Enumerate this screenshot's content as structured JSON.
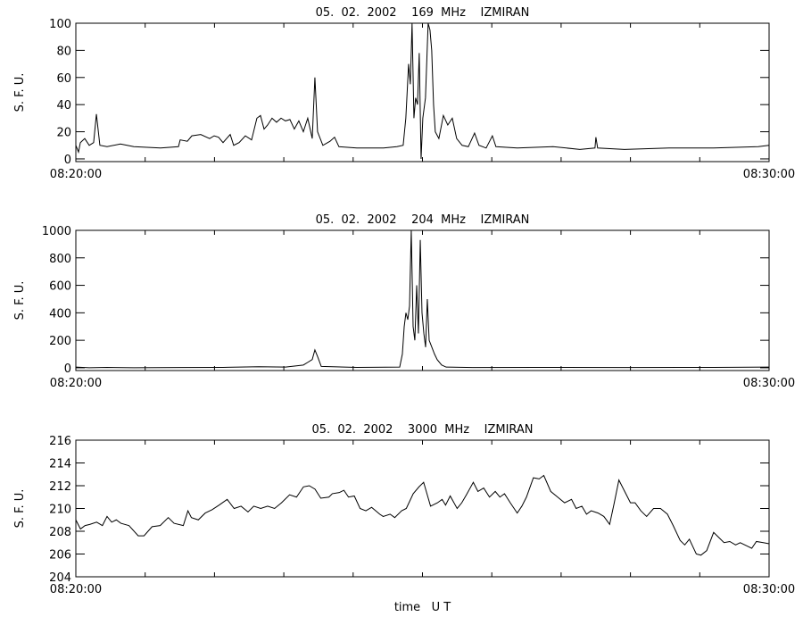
{
  "chart_data": [
    {
      "type": "line",
      "title": "05.  02.  2002    169  MHz    IZMIRAN",
      "y_label": "S. F. U.",
      "color": "#000000",
      "x": [
        0,
        2.3,
        3.9,
        7.7,
        11.6,
        15.4,
        17.8,
        20.8,
        27.0,
        38.6,
        50.2,
        73.3,
        88.8,
        90.3,
        96.5,
        100.4,
        108.1,
        115.8,
        119.7,
        123.5,
        127.4,
        133.6,
        136.6,
        141.3,
        146.7,
        152.1,
        156.7,
        159.8,
        162.9,
        166.0,
        169.8,
        173.7,
        177.6,
        181.4,
        185.3,
        189.1,
        193.0,
        196.9,
        200.7,
        204.6,
        206.9,
        209.2,
        213.8,
        220.0,
        223.9,
        227.7,
        243.2,
        266.3,
        277.9,
        283.3,
        285.6,
        288.0,
        289.5,
        291.0,
        292.6,
        294.1,
        295.7,
        297.2,
        298.8,
        300.3,
        302.6,
        304.9,
        306.5,
        308.0,
        309.6,
        311.1,
        314.2,
        318.1,
        321.9,
        325.8,
        329.6,
        334.3,
        339.7,
        345.1,
        348.9,
        355.1,
        360.5,
        363.6,
        382.1,
        413.0,
        436.2,
        449.3,
        450.1,
        451.6,
        474.8,
        513.4,
        552.0,
        590.6,
        600
      ],
      "values": [
        10,
        5,
        12,
        15,
        10,
        12,
        33,
        10,
        9,
        11,
        9,
        8,
        9,
        14,
        13,
        17,
        18,
        15,
        17,
        16,
        12,
        18,
        10,
        12,
        17,
        14,
        30,
        32,
        22,
        25,
        30,
        27,
        30,
        28,
        29,
        22,
        28,
        20,
        30,
        15,
        60,
        20,
        10,
        13,
        16,
        9,
        8,
        8,
        9,
        10,
        30,
        70,
        55,
        100,
        30,
        45,
        40,
        78,
        0,
        30,
        45,
        100,
        95,
        80,
        40,
        20,
        15,
        32,
        25,
        30,
        15,
        10,
        9,
        19,
        10,
        8,
        17,
        9,
        8,
        9,
        7,
        8,
        16,
        8,
        7,
        8,
        8,
        9,
        10
      ],
      "xlim": [
        0,
        600
      ],
      "xticks": [
        {
          "value": 0,
          "label": "08:20:00"
        },
        {
          "value": 600,
          "label": "08:30:00"
        }
      ],
      "xminor": [
        60,
        120,
        180,
        240,
        300,
        360,
        420,
        480,
        540
      ],
      "ylim": [
        -2,
        100
      ],
      "yticks": [
        0,
        20,
        40,
        60,
        80,
        100
      ]
    },
    {
      "type": "line",
      "title": "05.  02.  2002    204  MHz    IZMIRAN",
      "y_label": "S. F. U.",
      "color": "#000000",
      "x": [
        0,
        11.6,
        27.0,
        50.2,
        88.8,
        127.4,
        158.3,
        181.5,
        196.9,
        200.8,
        204.6,
        206.9,
        209.3,
        212.4,
        243.2,
        280.3,
        282.6,
        284.2,
        285.7,
        287.3,
        288.8,
        290.3,
        291.9,
        293.4,
        295.0,
        296.5,
        298.1,
        299.6,
        301.2,
        302.7,
        304.2,
        305.8,
        308.1,
        310.4,
        312.7,
        316.6,
        320.5,
        343.6,
        397.7,
        474.9,
        552.1,
        600
      ],
      "values": [
        5,
        0,
        3,
        0,
        2,
        3,
        8,
        5,
        20,
        40,
        60,
        130,
        80,
        10,
        3,
        5,
        100,
        300,
        400,
        350,
        450,
        1000,
        300,
        200,
        600,
        250,
        930,
        400,
        250,
        150,
        500,
        200,
        150,
        100,
        60,
        20,
        5,
        2,
        3,
        2,
        3,
        5
      ],
      "xlim": [
        0,
        600
      ],
      "xticks": [
        {
          "value": 0,
          "label": "08:20:00"
        },
        {
          "value": 600,
          "label": "08:30:00"
        }
      ],
      "xminor": [
        60,
        120,
        180,
        240,
        300,
        360,
        420,
        480,
        540
      ],
      "ylim": [
        -20,
        1000
      ],
      "yticks": [
        0,
        200,
        400,
        600,
        800,
        1000
      ]
    },
    {
      "type": "line",
      "title": "05.  02.  2002    3000  MHz    IZMIRAN",
      "y_label": "S. F. U.",
      "x_label": "time   U T",
      "color": "#000000",
      "x": [
        0,
        4,
        8,
        12,
        18,
        23,
        27,
        31,
        35,
        39,
        46,
        54,
        59,
        66,
        73,
        80,
        85,
        93,
        97,
        100,
        106,
        112,
        118,
        124,
        131,
        137,
        143,
        149,
        154,
        160,
        166,
        172,
        178,
        185,
        191,
        197,
        202,
        207,
        212,
        219,
        222,
        228,
        232,
        236,
        241,
        246,
        251,
        256,
        263,
        266,
        272,
        276,
        282,
        286,
        292,
        297,
        301,
        307,
        313,
        317,
        320,
        324,
        330,
        334,
        338,
        344,
        348,
        353,
        358,
        363,
        367,
        371,
        376,
        382,
        386,
        390,
        396,
        401,
        405,
        411,
        417,
        423,
        429,
        433,
        438,
        442,
        446,
        452,
        457,
        462,
        466,
        470,
        475,
        480,
        484,
        489,
        494,
        500,
        506,
        512,
        517,
        523,
        527,
        531,
        537,
        541,
        546,
        552,
        556,
        561,
        566,
        571,
        575,
        581,
        585,
        589,
        595,
        600
      ],
      "values": [
        209,
        208.2,
        208.5,
        208.6,
        208.8,
        208.5,
        209.3,
        208.8,
        209.0,
        208.7,
        208.5,
        207.6,
        207.6,
        208.4,
        208.5,
        209.2,
        208.7,
        208.5,
        209.8,
        209.2,
        209.0,
        209.6,
        209.9,
        210.3,
        210.8,
        210.0,
        210.2,
        209.7,
        210.2,
        210.0,
        210.2,
        210.0,
        210.5,
        211.2,
        211.0,
        211.9,
        212.0,
        211.7,
        210.9,
        211.0,
        211.3,
        211.4,
        211.6,
        211.0,
        211.1,
        210.0,
        209.8,
        210.1,
        209.5,
        209.3,
        209.5,
        209.2,
        209.8,
        210.0,
        211.3,
        211.9,
        212.3,
        210.2,
        210.5,
        210.8,
        210.3,
        211.1,
        210.0,
        210.5,
        211.2,
        212.3,
        211.5,
        211.8,
        211.0,
        211.5,
        211.0,
        211.3,
        210.5,
        209.6,
        210.2,
        211.0,
        212.7,
        212.6,
        212.9,
        211.5,
        211.0,
        210.5,
        210.8,
        210.0,
        210.2,
        209.5,
        209.8,
        209.6,
        209.3,
        208.6,
        210.5,
        212.5,
        211.5,
        210.5,
        210.5,
        209.8,
        209.3,
        210.0,
        210.0,
        209.5,
        208.5,
        207.2,
        206.8,
        207.3,
        206.0,
        205.9,
        206.3,
        207.9,
        207.5,
        207.0,
        207.1,
        206.8,
        207.0,
        206.7,
        206.5,
        207.1,
        207.0,
        206.9
      ],
      "xlim": [
        0,
        600
      ],
      "xticks": [
        {
          "value": 0,
          "label": "08:20:00"
        },
        {
          "value": 600,
          "label": "08:30:00"
        }
      ],
      "xminor": [
        60,
        120,
        180,
        240,
        300,
        360,
        420,
        480,
        540
      ],
      "ylim": [
        204,
        216
      ],
      "yticks": [
        204,
        206,
        208,
        210,
        212,
        214,
        216
      ]
    }
  ]
}
